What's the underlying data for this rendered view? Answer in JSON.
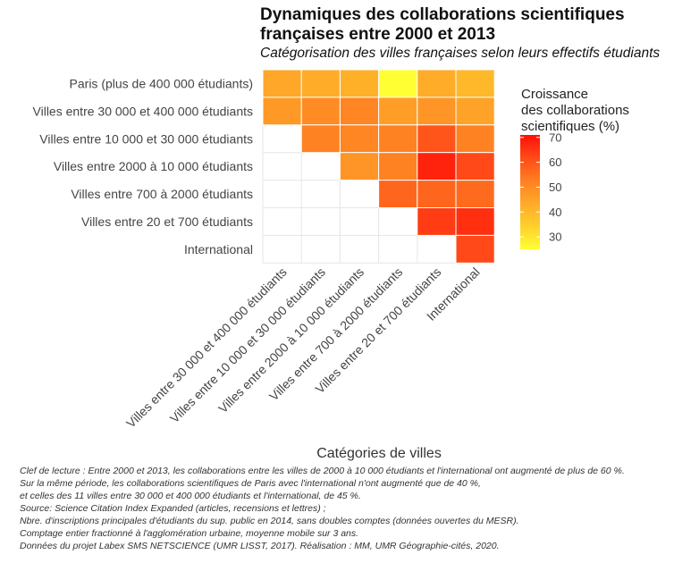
{
  "chart_data": {
    "type": "heatmap",
    "title": "Dynamiques des collaborations scientifiques françaises entre 2000 et 2013",
    "title_lines": [
      "Dynamiques des collaborations scientifiques",
      "françaises entre 2000 et 2013"
    ],
    "subtitle": "Catégorisation des villes françaises selon leurs effectifs étudiants",
    "xlabel": "Catégories de villes",
    "ylabel": "",
    "rows": [
      "Paris (plus de 400 000 étudiants)",
      "Villes entre 30 000 et 400 000 étudiants",
      "Villes entre 10 000 et 30 000 étudiants",
      "Villes entre 2000 à 10 000 étudiants",
      "Villes entre 700 à 2000 étudiants",
      "Villes entre 20 et 700 étudiants",
      "International"
    ],
    "columns": [
      "Villes entre 30 000 et 400 000 étudiants",
      "Villes entre 10 000 et 30 000 étudiants",
      "Villes entre 2000 à 10 000 étudiants",
      "Villes entre 700 à 2000 étudiants",
      "Villes entre 20 et 700 étudiants",
      "International"
    ],
    "values": [
      [
        44,
        43,
        42,
        25,
        43,
        40
      ],
      [
        47,
        50,
        51,
        46,
        48,
        45
      ],
      [
        null,
        52,
        51,
        52,
        60,
        52
      ],
      [
        null,
        null,
        48,
        52,
        68,
        62
      ],
      [
        null,
        null,
        null,
        57,
        57,
        56
      ],
      [
        null,
        null,
        null,
        null,
        64,
        66
      ],
      [
        null,
        null,
        null,
        null,
        null,
        62
      ]
    ],
    "legend": {
      "title_lines": [
        "Croissance",
        " des collaborations",
        " scientifiques (%)"
      ],
      "ticks": [
        30,
        40,
        50,
        60,
        70
      ],
      "range": [
        25,
        71
      ],
      "placement": "right"
    },
    "color_scale": [
      "#ffff33",
      "#ffd02c",
      "#ffaa29",
      "#ff7f22",
      "#ff4a18",
      "#ff0f07"
    ]
  },
  "caption": [
    "Clef de lecture : Entre 2000 et 2013, les collaborations entre les villes de 2000 à 10 000 étudiants et l'international ont augmenté de plus de 60 %.",
    "Sur la même période, les collaborations scientifiques de Paris avec l'international n'ont augmenté que de 40 %,",
    "et celles des 11 villes entre 30 000 et 400 000 étudiants et l'international, de 45 %.",
    "Source: Science Citation Index Expanded (articles, recensions et lettres) ;",
    "Nbre. d'inscriptions principales d'étudiants du sup. public en 2014, sans doubles comptes (données ouvertes du MESR).",
    "Comptage entier fractionné à l'agglomération urbaine, moyenne mobile sur 3 ans.",
    "Données du projet Labex SMS NETSCIENCE (UMR LISST, 2017). Réalisation : MM, UMR Géographie-cités, 2020."
  ]
}
